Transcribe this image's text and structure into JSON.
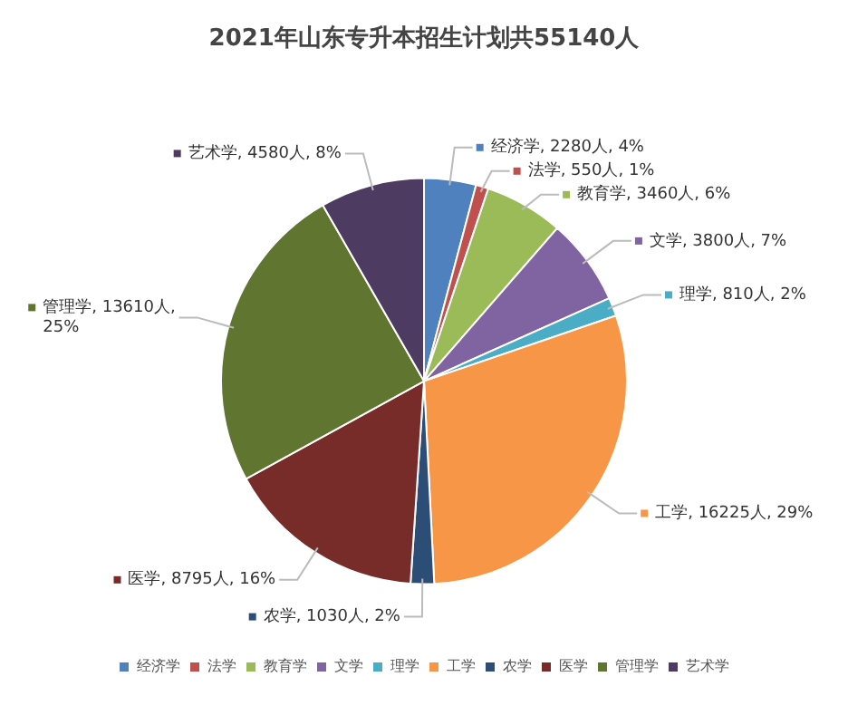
{
  "chart_data": {
    "type": "pie",
    "title": "2021年山东专升本招生计划共55140人",
    "categories": [
      "经济学",
      "法学",
      "教育学",
      "文学",
      "理学",
      "工学",
      "农学",
      "医学",
      "管理学",
      "艺术学"
    ],
    "values": [
      2280,
      550,
      3460,
      3800,
      810,
      16225,
      1030,
      8795,
      13610,
      4580
    ],
    "colors": [
      "#4e81bd",
      "#c0504d",
      "#9bbb59",
      "#8064a2",
      "#4bacc6",
      "#f79646",
      "#2c4d75",
      "#772c2a",
      "#5f7530",
      "#4d3b62"
    ],
    "value_labels": [
      "经济学, 2280人, 4%",
      "法学, 550人, 1%",
      "教育学, 3460人, 6%",
      "文学, 3800人, 7%",
      "理学, 810人, 2%",
      "工学, 16225人, 29%",
      "农学, 1030人, 2%",
      "医学, 8795人, 16%",
      "管理学, 13610人, 25%",
      "艺术学, 4580人, 8%"
    ],
    "legend": "bottom"
  }
}
